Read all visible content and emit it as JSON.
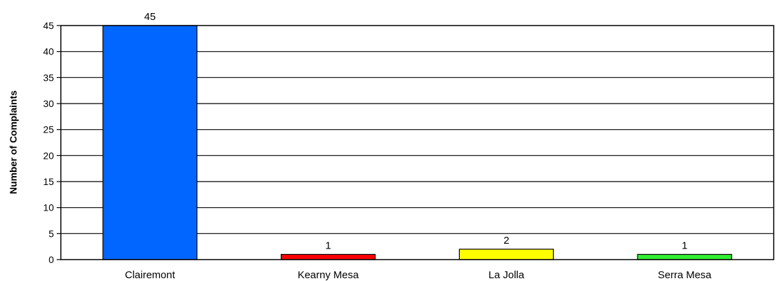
{
  "chart_data": {
    "type": "bar",
    "title": "",
    "xlabel": "",
    "ylabel": "Number of Complaints",
    "categories": [
      "Clairemont",
      "Kearny Mesa",
      "La Jolla",
      "Serra Mesa"
    ],
    "values": [
      45,
      1,
      2,
      1
    ],
    "data_labels": [
      "45",
      "1",
      "2",
      "1"
    ],
    "bar_colors": [
      "#0066ff",
      "#ff0000",
      "#ffff00",
      "#33ee33"
    ],
    "ylim": [
      0,
      45
    ],
    "yticks": [
      0,
      5,
      10,
      15,
      20,
      25,
      30,
      35,
      40,
      45
    ],
    "grid": true,
    "legend": "none"
  }
}
